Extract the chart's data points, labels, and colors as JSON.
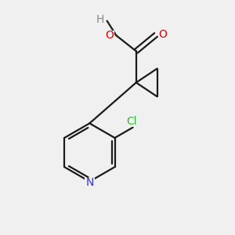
{
  "background_color": "#f0f0f0",
  "bond_color": "#1a1a1a",
  "atom_colors": {
    "O": "#e60000",
    "N": "#3333cc",
    "Cl": "#33bb33",
    "H": "#888888"
  },
  "figsize": [
    3.0,
    3.0
  ],
  "dpi": 100,
  "xlim": [
    0,
    10
  ],
  "ylim": [
    0,
    10
  ]
}
